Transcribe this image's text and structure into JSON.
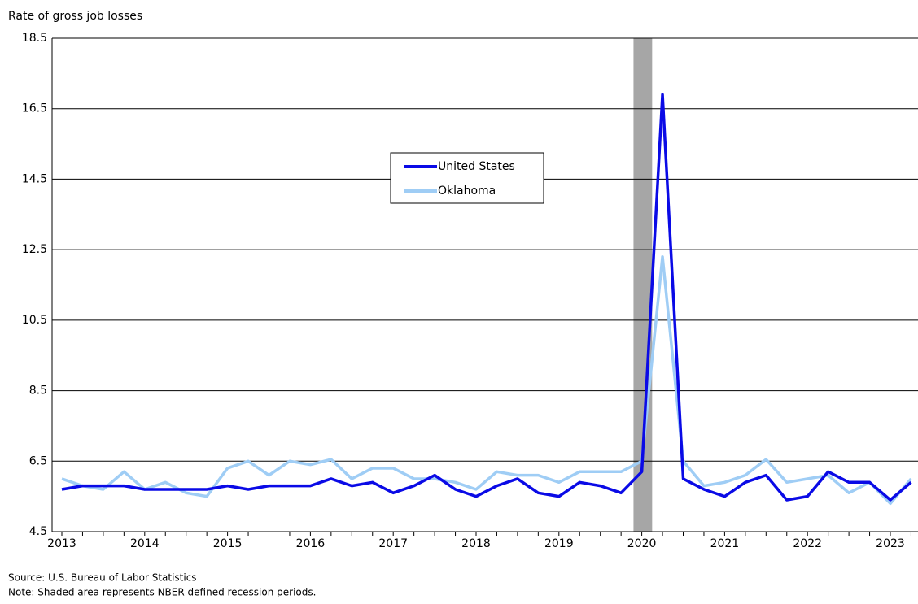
{
  "chart_data": {
    "type": "line",
    "y_label": "Rate of gross job losses",
    "categories": [
      "2013",
      null,
      null,
      null,
      "2014",
      null,
      null,
      null,
      "2015",
      null,
      null,
      null,
      "2016",
      null,
      null,
      null,
      "2017",
      null,
      null,
      null,
      "2018",
      null,
      null,
      null,
      "2019",
      null,
      null,
      null,
      "2020",
      null,
      null,
      null,
      "2021",
      null,
      null,
      null,
      "2022",
      null,
      null,
      null,
      "2023",
      null
    ],
    "series": [
      {
        "name": "United States",
        "color": "#0a0ae6",
        "values": [
          5.7,
          5.8,
          5.8,
          5.8,
          5.7,
          5.7,
          5.7,
          5.7,
          5.8,
          5.7,
          5.8,
          5.8,
          5.8,
          6.0,
          5.8,
          5.9,
          5.6,
          5.8,
          6.1,
          5.7,
          5.5,
          5.8,
          6.0,
          5.6,
          5.5,
          5.9,
          5.8,
          5.6,
          6.2,
          16.9,
          6.0,
          5.7,
          5.5,
          5.9,
          6.1,
          5.4,
          5.5,
          6.2,
          5.9,
          5.9,
          5.4,
          5.9
        ]
      },
      {
        "name": "Oklahoma",
        "color": "#9fcdf5",
        "values": [
          6.0,
          5.8,
          5.7,
          6.2,
          5.7,
          5.9,
          5.6,
          5.5,
          6.3,
          6.5,
          6.1,
          6.5,
          6.4,
          6.55,
          6.0,
          6.3,
          6.3,
          6.0,
          6.0,
          5.9,
          5.7,
          6.2,
          6.1,
          6.1,
          5.9,
          6.2,
          6.2,
          6.2,
          6.5,
          12.3,
          6.5,
          5.8,
          5.9,
          6.1,
          6.55,
          5.9,
          6.0,
          6.1,
          5.6,
          5.9,
          5.3,
          6.0
        ]
      }
    ],
    "recession": [
      27.6,
      28.5
    ],
    "ylim": [
      4.5,
      18.5
    ],
    "yticks": [
      4.5,
      6.5,
      8.5,
      10.5,
      12.5,
      14.5,
      16.5,
      18.5
    ],
    "grid": true,
    "source": "Source: U.S. Bureau of Labor Statistics",
    "note": "Note: Shaded area represents NBER defined recession periods."
  }
}
